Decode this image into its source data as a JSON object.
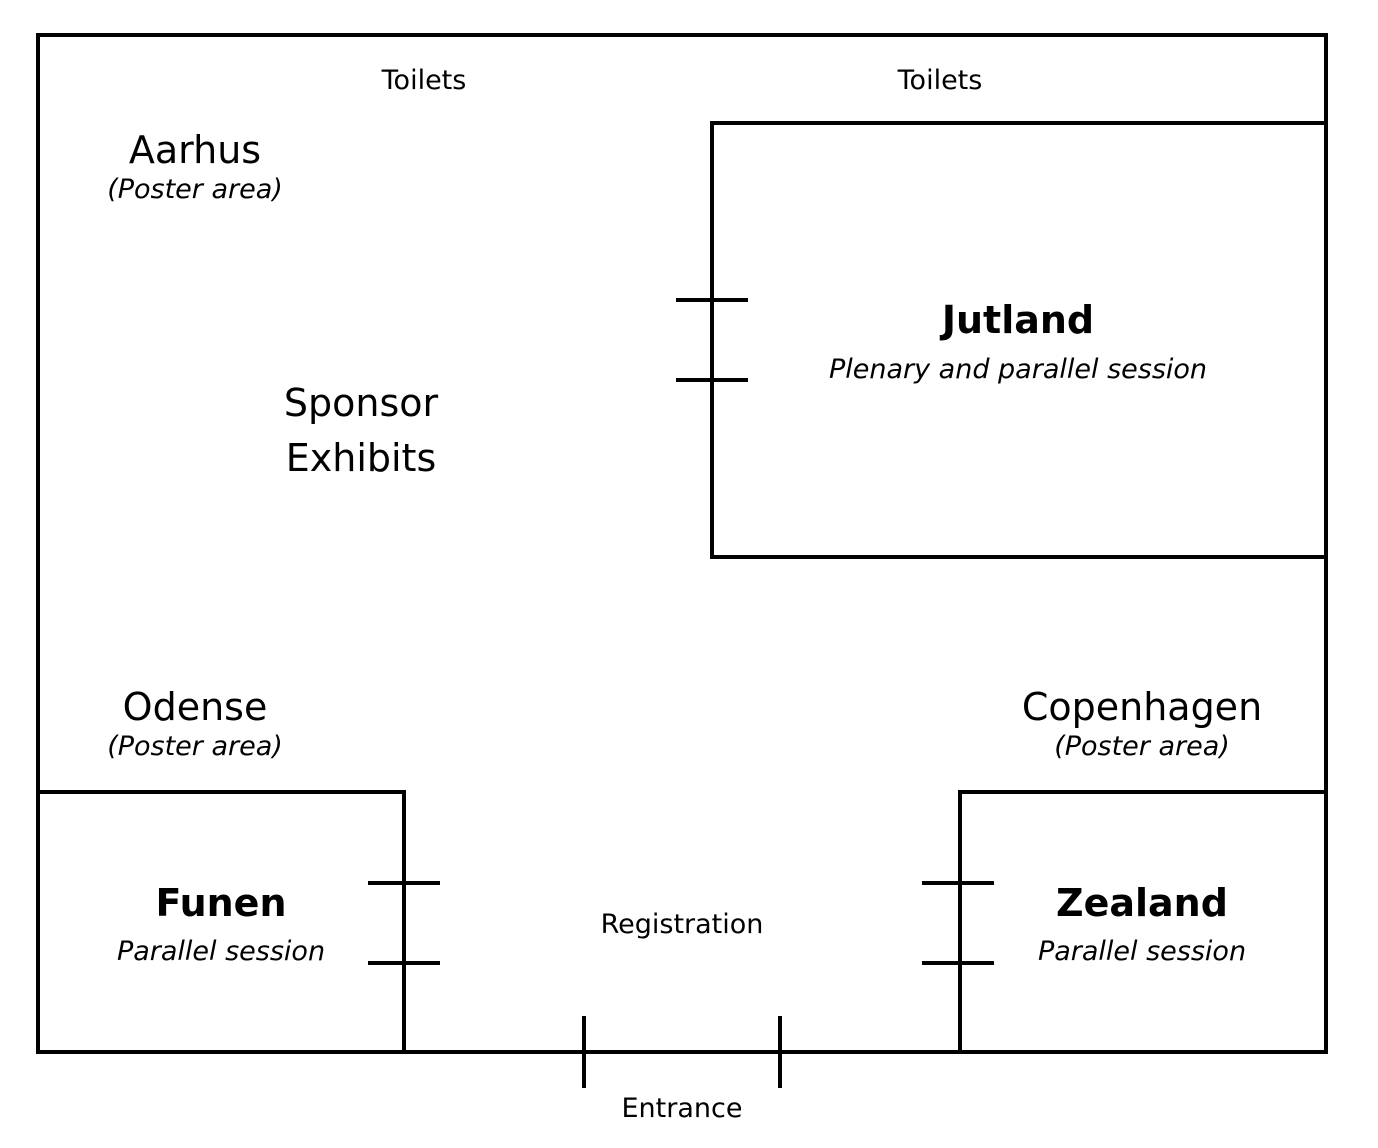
{
  "facilities": {
    "toilets_left": "Toilets",
    "toilets_right": "Toilets",
    "registration": "Registration",
    "entrance": "Entrance"
  },
  "areas": {
    "aarhus": {
      "name": "Aarhus",
      "note": "(Poster area)"
    },
    "odense": {
      "name": "Odense",
      "note": "(Poster area)"
    },
    "copenhagen": {
      "name": "Copenhagen",
      "note": "(Poster area)"
    },
    "sponsor": {
      "line1": "Sponsor",
      "line2": "Exhibits"
    }
  },
  "rooms": {
    "jutland": {
      "name": "Jutland",
      "note": "Plenary and parallel session"
    },
    "funen": {
      "name": "Funen",
      "note": "Parallel session"
    },
    "zealand": {
      "name": "Zealand",
      "note": "Parallel session"
    }
  }
}
